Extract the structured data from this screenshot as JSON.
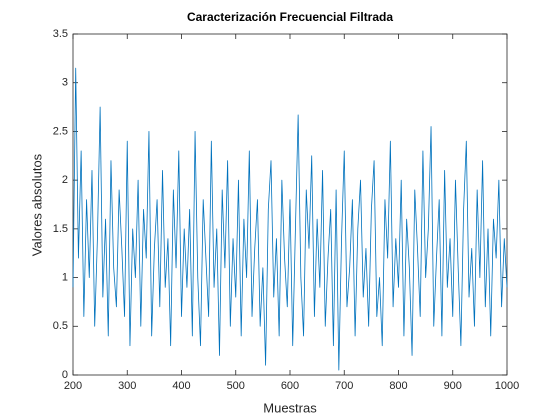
{
  "chart_data": {
    "type": "line",
    "title": "Caracterización Frecuencial Filtrada",
    "xlabel": "Muestras",
    "ylabel": "Valores absolutos",
    "x": [
      200,
      205,
      210,
      215,
      220,
      225,
      230,
      235,
      240,
      245,
      250,
      255,
      260,
      265,
      270,
      275,
      280,
      285,
      290,
      295,
      300,
      305,
      310,
      315,
      320,
      325,
      330,
      335,
      340,
      345,
      350,
      355,
      360,
      365,
      370,
      375,
      380,
      385,
      390,
      395,
      400,
      405,
      410,
      415,
      420,
      425,
      430,
      435,
      440,
      445,
      450,
      455,
      460,
      465,
      470,
      475,
      480,
      485,
      490,
      495,
      500,
      505,
      510,
      515,
      520,
      525,
      530,
      535,
      540,
      545,
      550,
      555,
      560,
      565,
      570,
      575,
      580,
      585,
      590,
      595,
      600,
      605,
      610,
      615,
      620,
      625,
      630,
      635,
      640,
      645,
      650,
      655,
      660,
      665,
      670,
      675,
      680,
      685,
      690,
      695,
      700,
      705,
      710,
      715,
      720,
      725,
      730,
      735,
      740,
      745,
      750,
      755,
      760,
      765,
      770,
      775,
      780,
      785,
      790,
      795,
      800,
      805,
      810,
      815,
      820,
      825,
      830,
      835,
      840,
      845,
      850,
      855,
      860,
      865,
      870,
      875,
      880,
      885,
      890,
      895,
      900,
      905,
      910,
      915,
      920,
      925,
      930,
      935,
      940,
      945,
      950,
      955,
      960,
      965,
      970,
      975,
      980,
      985,
      990,
      995,
      1000
    ],
    "series": [
      {
        "color": "#0072bd",
        "values": [
          0.9,
          3.15,
          1.2,
          2.3,
          0.6,
          1.8,
          1.0,
          2.1,
          0.5,
          1.4,
          2.75,
          0.8,
          1.6,
          0.4,
          2.2,
          1.1,
          0.7,
          1.9,
          1.3,
          0.6,
          2.4,
          0.3,
          1.5,
          1.0,
          2.0,
          0.5,
          1.7,
          1.2,
          2.5,
          0.4,
          1.3,
          1.8,
          0.7,
          2.1,
          0.9,
          1.4,
          0.3,
          1.9,
          1.1,
          2.3,
          0.6,
          1.5,
          0.9,
          1.7,
          0.4,
          2.5,
          1.0,
          0.3,
          1.8,
          1.2,
          0.6,
          2.4,
          0.9,
          1.5,
          0.2,
          1.9,
          1.1,
          2.2,
          0.5,
          1.4,
          0.8,
          2.0,
          0.4,
          1.6,
          1.0,
          2.3,
          0.6,
          1.3,
          1.8,
          0.5,
          1.1,
          0.1,
          1.7,
          2.2,
          0.8,
          1.4,
          0.4,
          2.0,
          1.2,
          0.7,
          1.8,
          0.3,
          1.5,
          2.67,
          1.0,
          0.4,
          1.9,
          1.3,
          2.25,
          0.6,
          1.6,
          0.9,
          2.1,
          0.5,
          1.2,
          1.7,
          0.3,
          1.9,
          0.05,
          1.4,
          2.3,
          0.7,
          1.1,
          1.8,
          0.4,
          1.5,
          2.0,
          0.8,
          1.3,
          0.5,
          1.7,
          2.2,
          0.6,
          1.0,
          0.3,
          1.8,
          1.2,
          2.4,
          0.7,
          1.4,
          0.9,
          2.0,
          0.4,
          1.6,
          1.1,
          0.2,
          1.9,
          1.3,
          0.6,
          2.3,
          1.0,
          1.5,
          2.55,
          0.5,
          1.2,
          1.8,
          0.4,
          2.1,
          0.9,
          1.4,
          0.6,
          2.0,
          1.1,
          0.3,
          1.7,
          2.4,
          0.8,
          1.3,
          0.5,
          1.9,
          1.0,
          2.2,
          0.7,
          1.5,
          0.4,
          1.6,
          1.2,
          2.0,
          0.7,
          1.4,
          0.9
        ]
      }
    ],
    "xlim": [
      200,
      1000
    ],
    "xticks": [
      200,
      300,
      400,
      500,
      600,
      700,
      800,
      900,
      1000
    ],
    "ylim": [
      0,
      3.5
    ],
    "yticks": [
      0,
      0.5,
      1,
      1.5,
      2,
      2.5,
      3,
      3.5
    ],
    "grid": false
  }
}
